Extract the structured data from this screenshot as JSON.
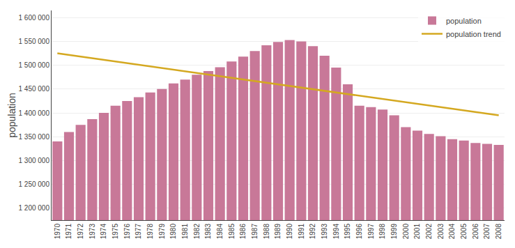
{
  "chart_data": {
    "type": "bar",
    "categories": [
      1970,
      1971,
      1972,
      1973,
      1974,
      1975,
      1976,
      1977,
      1978,
      1979,
      1980,
      1981,
      1982,
      1983,
      1984,
      1985,
      1986,
      1987,
      1988,
      1989,
      1990,
      1991,
      1992,
      1993,
      1994,
      1995,
      1996,
      1997,
      1998,
      1999,
      2000,
      2001,
      2002,
      2003,
      2004,
      2005,
      2006,
      2007,
      2008
    ],
    "series": [
      {
        "name": "population",
        "type": "bar",
        "color": "#c87898",
        "values": [
          1340000,
          1360000,
          1375000,
          1387000,
          1400000,
          1415000,
          1425000,
          1433000,
          1443000,
          1450000,
          1462000,
          1470000,
          1480000,
          1488000,
          1496000,
          1508000,
          1518000,
          1530000,
          1542000,
          1549000,
          1553000,
          1550000,
          1540000,
          1520000,
          1495000,
          1460000,
          1415000,
          1412000,
          1407000,
          1395000,
          1370000,
          1363000,
          1356000,
          1351000,
          1345000,
          1342000,
          1337000,
          1335000,
          1333000
        ]
      },
      {
        "name": "population trend",
        "type": "line",
        "color": "#d4a820",
        "x": [
          1970,
          2008
        ],
        "values": [
          1525000,
          1395000
        ]
      }
    ],
    "y_label": "population",
    "ylim": [
      1175000,
      1615000
    ],
    "yticks": [
      {
        "value": 1200000,
        "label": "1 200 000"
      },
      {
        "value": 1250000,
        "label": "1 250 000"
      },
      {
        "value": 1300000,
        "label": "1 300 000"
      },
      {
        "value": 1350000,
        "label": "1 350 000"
      },
      {
        "value": 1400000,
        "label": "1 400 000"
      },
      {
        "value": 1450000,
        "label": "1 450 000"
      },
      {
        "value": 1500000,
        "label": "1 500 000"
      },
      {
        "value": 1550000,
        "label": "1 550 000"
      },
      {
        "value": 1600000,
        "label": "1 600 000"
      }
    ],
    "grid": true,
    "legend": "upper right"
  }
}
